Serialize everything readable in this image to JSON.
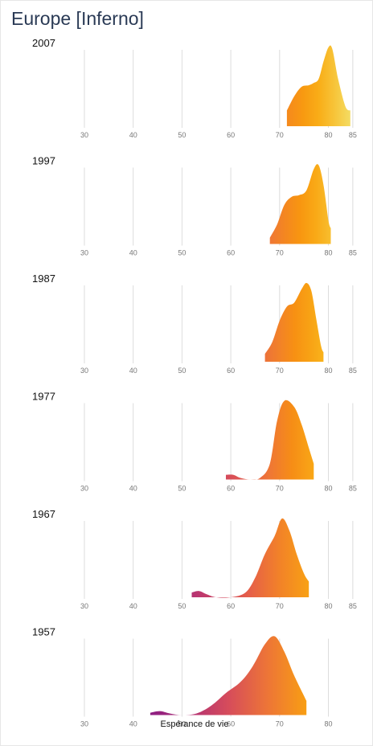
{
  "title": "Europe [Inferno]",
  "chart_data": {
    "type": "area",
    "title": "Europe [Inferno]",
    "xlabel": "Espérance de vie",
    "ylabel": "",
    "grid": true,
    "panels": [
      {
        "year": "2007",
        "ticks": [
          30,
          40,
          50,
          60,
          70,
          80,
          85
        ],
        "range": [
          71.5,
          84.5
        ],
        "x": [
          71.5,
          73,
          74.5,
          76,
          77,
          78,
          79,
          80,
          80.8,
          82,
          83.5,
          84.5
        ],
        "y": [
          0.2,
          0.38,
          0.5,
          0.52,
          0.55,
          0.6,
          0.82,
          1.0,
          0.98,
          0.6,
          0.25,
          0.2
        ]
      },
      {
        "year": "1997",
        "ticks": [
          30,
          40,
          50,
          60,
          70,
          80,
          85
        ],
        "range": [
          68,
          80.5
        ],
        "x": [
          68,
          69.5,
          71,
          72.5,
          74,
          75.5,
          77,
          78,
          79,
          80,
          80.5
        ],
        "y": [
          0.08,
          0.25,
          0.5,
          0.6,
          0.62,
          0.68,
          0.95,
          1.0,
          0.75,
          0.3,
          0.2
        ]
      },
      {
        "year": "1987",
        "ticks": [
          30,
          40,
          50,
          60,
          70,
          80,
          85
        ],
        "range": [
          67,
          79
        ],
        "x": [
          67,
          68.5,
          70,
          71.5,
          73,
          74.5,
          75.5,
          76.5,
          77.5,
          78.5,
          79
        ],
        "y": [
          0.1,
          0.25,
          0.52,
          0.7,
          0.75,
          0.92,
          1.0,
          0.9,
          0.55,
          0.2,
          0.12
        ]
      },
      {
        "year": "1977",
        "ticks": [
          30,
          40,
          50,
          60,
          70,
          80,
          85
        ],
        "range": [
          59,
          77
        ],
        "x": [
          59,
          60.5,
          62,
          64,
          66,
          68,
          69.5,
          71,
          73,
          74.5,
          76,
          77
        ],
        "y": [
          0.06,
          0.06,
          0.02,
          0.0,
          0.02,
          0.2,
          0.75,
          1.0,
          0.92,
          0.7,
          0.4,
          0.2
        ]
      },
      {
        "year": "1967",
        "ticks": [
          30,
          40,
          50,
          60,
          70,
          80,
          85
        ],
        "range": [
          52,
          76
        ],
        "x": [
          52,
          53.5,
          55,
          57,
          60,
          63,
          65,
          67,
          69,
          70.5,
          72,
          73.5,
          75,
          76
        ],
        "y": [
          0.06,
          0.08,
          0.04,
          0.0,
          0.0,
          0.06,
          0.25,
          0.55,
          0.78,
          1.0,
          0.85,
          0.55,
          0.3,
          0.2
        ]
      },
      {
        "year": "1957",
        "ticks": [
          30,
          40,
          50,
          60,
          70,
          80
        ],
        "range": [
          43.5,
          75.5
        ],
        "x": [
          43.5,
          45.5,
          47.5,
          50,
          53,
          56,
          59,
          62,
          64.5,
          67,
          69,
          71,
          73,
          75.5
        ],
        "y": [
          0.03,
          0.05,
          0.02,
          0.0,
          0.02,
          0.12,
          0.28,
          0.42,
          0.62,
          0.9,
          1.0,
          0.8,
          0.5,
          0.18
        ]
      }
    ]
  }
}
